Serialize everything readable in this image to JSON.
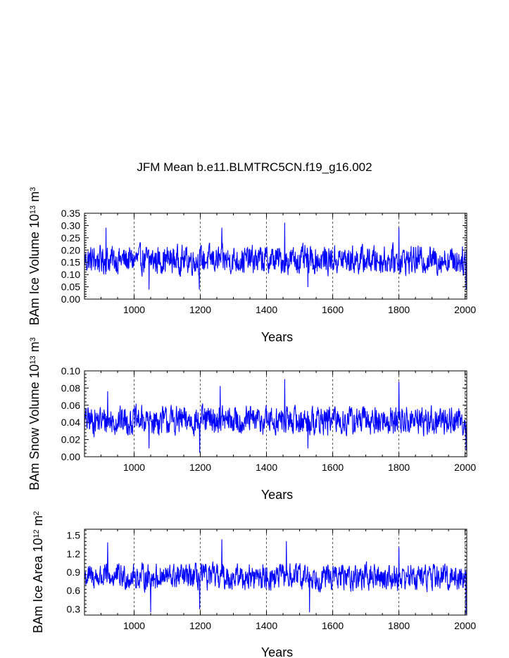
{
  "title": "JFM Mean b.e11.BLMTRC5CN.f19_g16.002",
  "chart_data": [
    {
      "type": "line",
      "xlabel": "Years",
      "ylabel": {
        "text": "BAm Ice Volume 10",
        "sup1": "13",
        "mid": " m",
        "sup2": "3"
      },
      "xlim": [
        850,
        2005
      ],
      "ylim": [
        0.0,
        0.35
      ],
      "xticks": [
        1000,
        1200,
        1400,
        1600,
        1800,
        2000
      ],
      "xtick_labels": [
        "1000",
        "1200",
        "1400",
        "1600",
        "1800",
        "2000"
      ],
      "yticks": [
        0.0,
        0.05,
        0.1,
        0.15,
        0.2,
        0.25,
        0.3,
        0.35
      ],
      "ytick_labels": [
        "0.00",
        "0.05",
        "0.10",
        "0.15",
        "0.20",
        "0.25",
        "0.30",
        "0.35"
      ],
      "grid_x": [
        1000,
        1200,
        1400,
        1600,
        1800,
        2000
      ],
      "series": [
        {
          "name": "BAm Ice Volume",
          "color": "#0000ff",
          "mean": 0.16,
          "amplitude": 0.055,
          "min": 0.04,
          "max": 0.31,
          "peaks": [
            [
              915,
              0.29
            ],
            [
              1045,
              0.04
            ],
            [
              1197,
              0.04
            ],
            [
              1265,
              0.29
            ],
            [
              1455,
              0.31
            ],
            [
              1525,
              0.05
            ],
            [
              1800,
              0.29
            ],
            [
              2003,
              0.03
            ]
          ]
        }
      ]
    },
    {
      "type": "line",
      "xlabel": "Years",
      "ylabel": {
        "text": "BAm Snow Volume 10",
        "sup1": "13",
        "mid": " m",
        "sup2": "3"
      },
      "xlim": [
        850,
        2005
      ],
      "ylim": [
        0.0,
        0.1
      ],
      "xticks": [
        1000,
        1200,
        1400,
        1600,
        1800,
        2000
      ],
      "xtick_labels": [
        "1000",
        "1200",
        "1400",
        "1600",
        "1800",
        "2000"
      ],
      "yticks": [
        0.0,
        0.02,
        0.04,
        0.06,
        0.08,
        0.1
      ],
      "ytick_labels": [
        "0.00",
        "0.02",
        "0.04",
        "0.06",
        "0.08",
        "0.10"
      ],
      "grid_x": [
        1000,
        1200,
        1400,
        1600,
        1800,
        2000
      ],
      "series": [
        {
          "name": "BAm Snow Volume",
          "color": "#0000ff",
          "mean": 0.042,
          "amplitude": 0.016,
          "min": 0.005,
          "max": 0.09,
          "peaks": [
            [
              920,
              0.076
            ],
            [
              1045,
              0.01
            ],
            [
              1198,
              0.005
            ],
            [
              1260,
              0.082
            ],
            [
              1455,
              0.09
            ],
            [
              1525,
              0.01
            ],
            [
              1800,
              0.087
            ],
            [
              2003,
              0.008
            ]
          ]
        }
      ]
    },
    {
      "type": "line",
      "xlabel": "Years",
      "ylabel": {
        "text": "BAm Ice Area 10",
        "sup1": "12",
        "mid": " m",
        "sup2": "2"
      },
      "xlim": [
        850,
        2005
      ],
      "ylim": [
        0.2,
        1.6
      ],
      "xticks": [
        1000,
        1200,
        1400,
        1600,
        1800,
        2000
      ],
      "xtick_labels": [
        "1000",
        "1200",
        "1400",
        "1600",
        "1800",
        "2000"
      ],
      "yticks": [
        0.3,
        0.6,
        0.9,
        1.2,
        1.5
      ],
      "ytick_labels": [
        "0.3",
        "0.6",
        "0.9",
        "1.2",
        "1.5"
      ],
      "grid_x": [
        1000,
        1200,
        1400,
        1600,
        1800,
        2000
      ],
      "series": [
        {
          "name": "BAm Ice Area",
          "color": "#0000ff",
          "mean": 0.82,
          "amplitude": 0.2,
          "min": 0.22,
          "max": 1.43,
          "peaks": [
            [
              920,
              1.38
            ],
            [
              1050,
              0.25
            ],
            [
              1198,
              0.3
            ],
            [
              1265,
              1.43
            ],
            [
              1460,
              1.4
            ],
            [
              1530,
              0.25
            ],
            [
              1800,
              1.3
            ],
            [
              2003,
              0.22
            ]
          ]
        }
      ]
    }
  ]
}
